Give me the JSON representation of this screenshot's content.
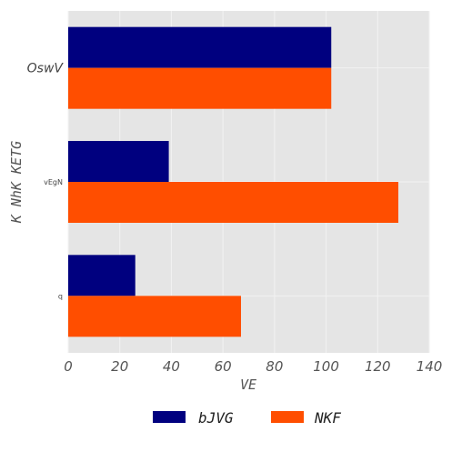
{
  "chart_data": {
    "type": "bar",
    "orientation": "horizontal",
    "categories": [
      "OswV",
      "vEgN",
      "q"
    ],
    "series": [
      {
        "name": "bJVG",
        "values": [
          102,
          39,
          26
        ],
        "color": "#00007f"
      },
      {
        "name": "NKF",
        "values": [
          102,
          128,
          67
        ],
        "color": "#ff4e00"
      }
    ],
    "xlabel": "VE",
    "ylabel": "K NhK KETG",
    "xlim": [
      0,
      140
    ],
    "xticks": [
      "0",
      "20",
      "40",
      "60",
      "80",
      "100",
      "120",
      "140"
    ],
    "grid": true,
    "legend_position": "bottom-center",
    "background": "#e5e5e5"
  }
}
